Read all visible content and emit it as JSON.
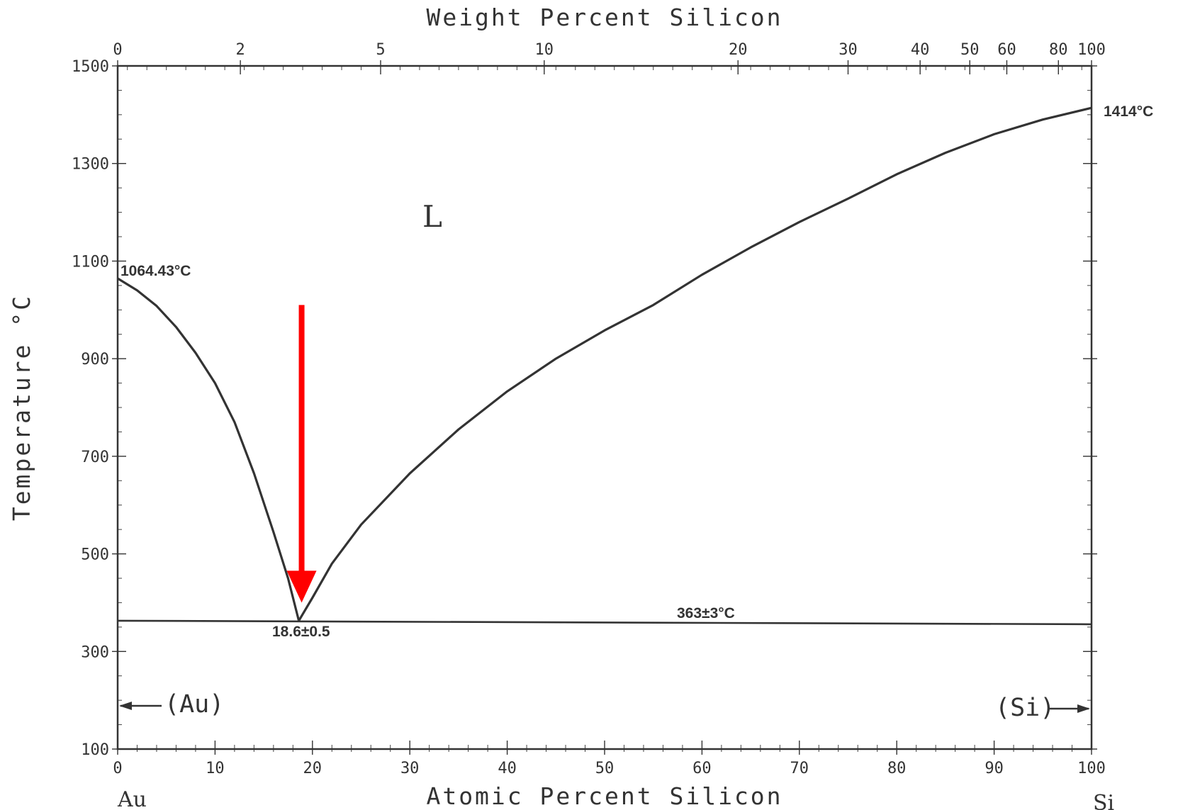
{
  "chart_data": {
    "type": "line",
    "title": "",
    "xlabel": "Atomic Percent Silicon",
    "x2label": "Weight Percent Silicon",
    "ylabel": "Temperature °C",
    "xlim": [
      0,
      100
    ],
    "ylim": [
      100,
      1500
    ],
    "x_ticks": [
      "0",
      "10",
      "20",
      "30",
      "40",
      "50",
      "60",
      "70",
      "80",
      "90",
      "100"
    ],
    "x2_ticks": [
      {
        "label": "0",
        "at_percent": 0
      },
      {
        "label": "2",
        "at_percent": 12.6
      },
      {
        "label": "5",
        "at_percent": 27.0
      },
      {
        "label": "10",
        "at_percent": 43.8
      },
      {
        "label": "20",
        "at_percent": 63.7
      },
      {
        "label": "30",
        "at_percent": 75.0
      },
      {
        "label": "40",
        "at_percent": 82.4
      },
      {
        "label": "50",
        "at_percent": 87.5
      },
      {
        "label": "60",
        "at_percent": 91.3
      },
      {
        "label": "80",
        "at_percent": 96.6
      },
      {
        "label": "100",
        "at_percent": 100
      }
    ],
    "y_ticks": [
      "1500",
      "1300",
      "1100",
      "900",
      "700",
      "500",
      "300",
      "100"
    ],
    "endpoints": {
      "left": "Au",
      "right": "Si"
    },
    "series": [
      {
        "x": [
          0,
          2,
          4,
          6,
          8,
          10,
          12,
          14,
          16,
          17.5,
          18.6
        ],
        "y": [
          1064.43,
          1040,
          1008,
          965,
          912,
          850,
          770,
          665,
          545,
          450,
          363
        ]
      },
      {
        "x": [
          18.6,
          20,
          22,
          25,
          30,
          35,
          40,
          45,
          50,
          55,
          60,
          65,
          70,
          75,
          80,
          85,
          90,
          95,
          100
        ],
        "y": [
          363,
          410,
          480,
          560,
          665,
          755,
          833,
          900,
          958,
          1010,
          1072,
          1128,
          1180,
          1228,
          1278,
          1322,
          1360,
          1390,
          1414
        ]
      }
    ],
    "eutectic": {
      "x": 18.6,
      "y": 363
    },
    "isotherm_y": 363,
    "annotations": {
      "au_melting": "1064.43°C",
      "si_melting": "1414°C",
      "eutectic_composition": "18.6±0.5",
      "eutectic_temperature": "363±3°C",
      "liquid_region": "L",
      "au_phase": "(Au)",
      "si_phase": "(Si)"
    },
    "marker": {
      "type": "arrow",
      "color": "#ff0000",
      "points_to_x": 18.6,
      "from_y": 1010,
      "to_y": 400
    }
  }
}
